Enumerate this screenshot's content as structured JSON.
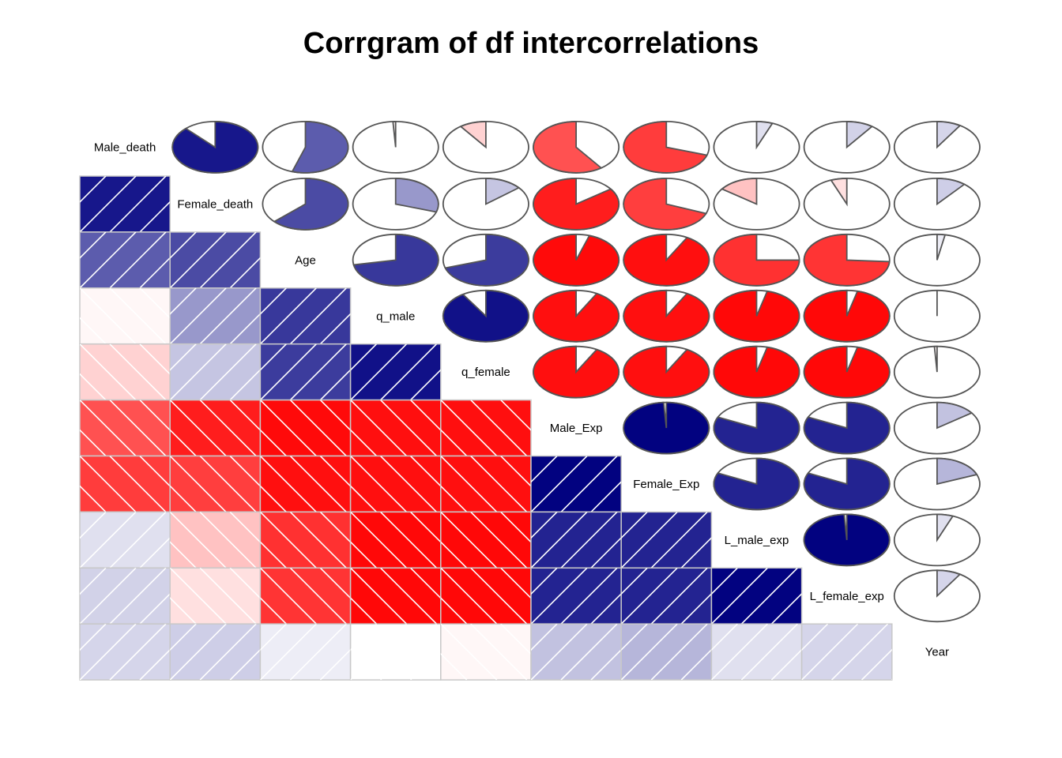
{
  "chart_data": {
    "type": "heatmap",
    "title": "Corrgram of df intercorrelations",
    "lower_panel": "shade",
    "upper_panel": "pie",
    "variables": [
      "Male_death",
      "Female_death",
      "Age",
      "q_male",
      "q_female",
      "Male_Exp",
      "Female_Exp",
      "L_male_exp",
      "L_female_exp",
      "Year"
    ],
    "correlations": [
      [
        1.0,
        0.88,
        0.55,
        -0.01,
        -0.1,
        -0.6,
        -0.7,
        0.06,
        0.1,
        0.09
      ],
      [
        0.88,
        1.0,
        0.63,
        0.3,
        0.14,
        -0.85,
        -0.69,
        -0.15,
        -0.06,
        0.11
      ],
      [
        0.55,
        0.63,
        1.0,
        0.72,
        0.7,
        -0.95,
        -0.92,
        -0.75,
        -0.74,
        0.03
      ],
      [
        -0.01,
        0.3,
        0.72,
        1.0,
        0.91,
        -0.92,
        -0.92,
        -0.96,
        -0.96,
        0.0
      ],
      [
        -0.1,
        0.14,
        0.7,
        0.91,
        1.0,
        -0.92,
        -0.92,
        -0.96,
        -0.96,
        -0.01
      ],
      [
        -0.6,
        -0.85,
        -0.95,
        -0.92,
        -0.92,
        1.0,
        0.99,
        0.82,
        0.82,
        0.15
      ],
      [
        -0.7,
        -0.69,
        -0.92,
        -0.92,
        -0.92,
        0.99,
        1.0,
        0.82,
        0.82,
        0.19
      ],
      [
        0.06,
        -0.15,
        -0.75,
        -0.96,
        -0.96,
        0.82,
        0.82,
        1.0,
        0.99,
        0.06
      ],
      [
        0.1,
        -0.06,
        -0.74,
        -0.96,
        -0.96,
        0.82,
        0.82,
        0.99,
        1.0,
        0.09
      ],
      [
        0.09,
        0.11,
        0.03,
        0.0,
        -0.01,
        0.15,
        0.19,
        0.06,
        0.09,
        1.0
      ]
    ],
    "colors": {
      "positive": "#00007F",
      "negative": "#FF0000",
      "neutral": "#FFFFFF",
      "grid": "#C8C8C8",
      "pie_outline": "#555555",
      "hatch": "#FFFFFF"
    }
  }
}
